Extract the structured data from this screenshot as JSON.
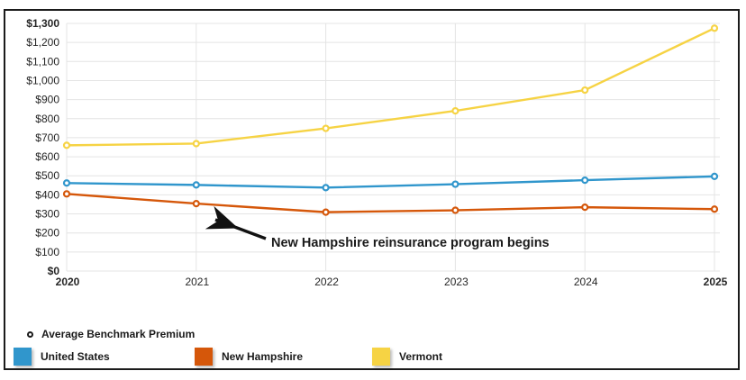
{
  "chart_data": {
    "type": "line",
    "x": [
      2020,
      2021,
      2022,
      2023,
      2024,
      2025
    ],
    "series": [
      {
        "name": "United States",
        "color": "#3096cc",
        "values": [
          462,
          452,
          438,
          456,
          477,
          497
        ]
      },
      {
        "name": "New Hampshire",
        "color": "#d5570a",
        "values": [
          405,
          354,
          309,
          319,
          335,
          325
        ]
      },
      {
        "name": "Vermont",
        "color": "#f6d344",
        "values": [
          660,
          669,
          749,
          841,
          950,
          1275
        ]
      }
    ],
    "ylim": [
      0,
      1300
    ],
    "ytick_step": 100,
    "ytick_prefix": "$",
    "grid": true,
    "legend_position": "bottom",
    "marker_style": "open-circle",
    "annotation": "New Hampshire reinsurance program begins",
    "bold_ticks": {
      "y": [
        "$0",
        "$1,300"
      ],
      "x": [
        "2020",
        "2025"
      ]
    }
  },
  "colors": {
    "grid": "#e4e4e4",
    "tick_text": "#262626",
    "annotation_text": "#1a1a1a",
    "arrow": "#111111",
    "frame_border": "#1b1b1b"
  },
  "legend": {
    "marker_label": "Average Benchmark Premium",
    "items": [
      {
        "label": "United States",
        "color": "#3096cc"
      },
      {
        "label": "New Hampshire",
        "color": "#d5570a"
      },
      {
        "label": "Vermont",
        "color": "#f6d344"
      }
    ]
  }
}
